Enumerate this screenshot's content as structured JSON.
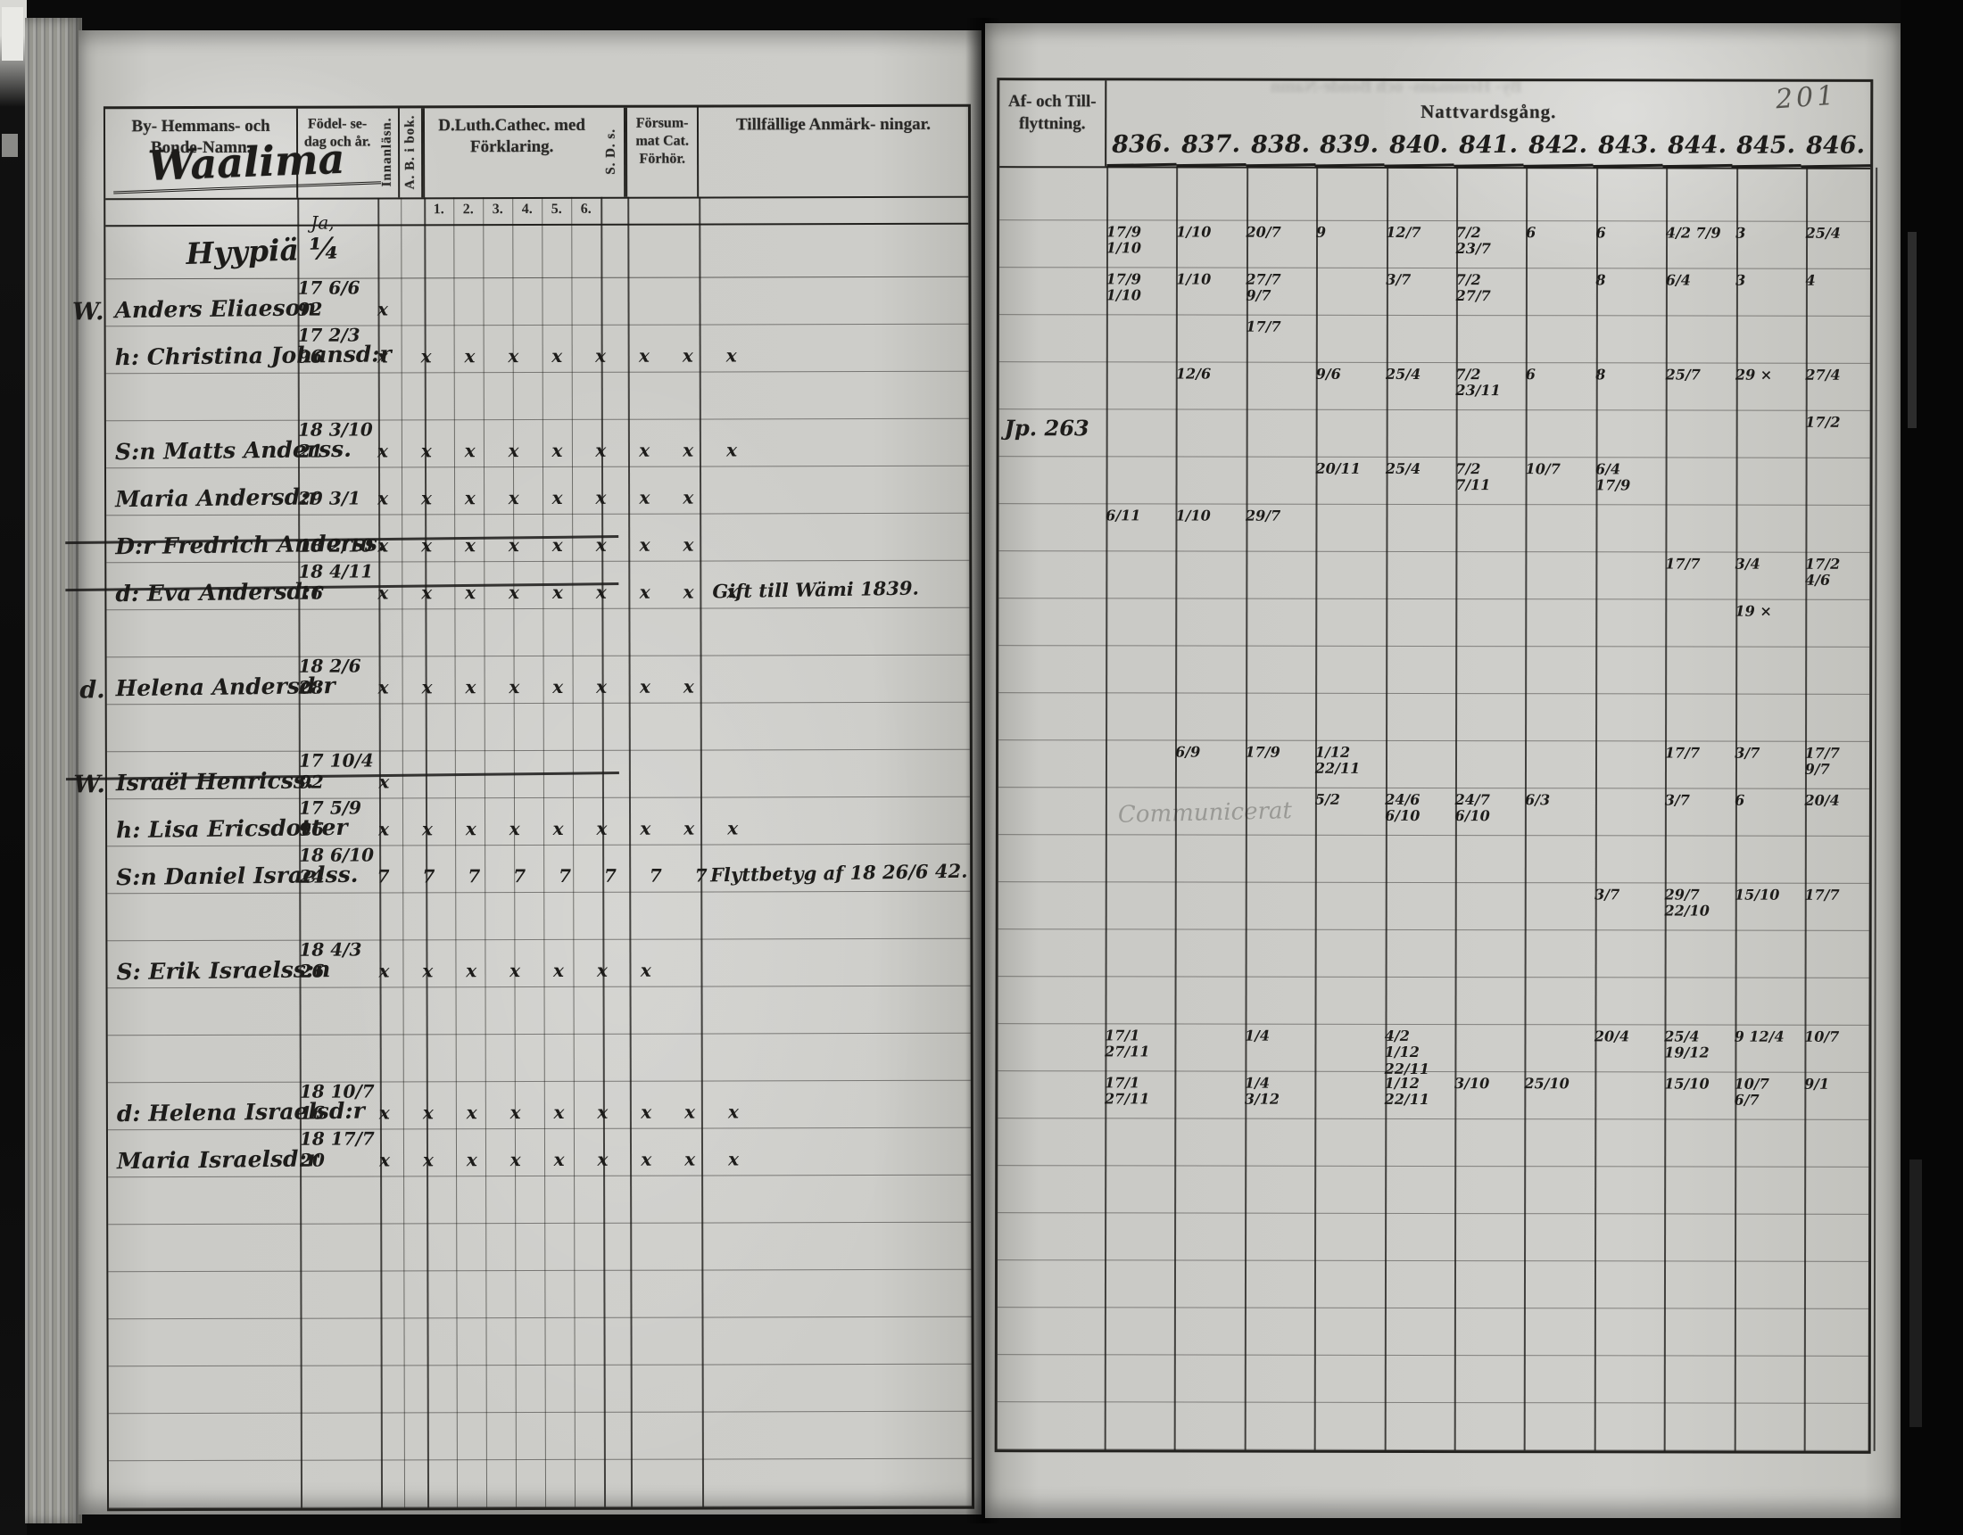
{
  "page_number": "201",
  "left_header": {
    "col_names": "By- Hemmans- och Bonde-Namn.",
    "col_birth": "Födel- se-dag och år.",
    "col_reading": "Innanläsn.",
    "col_abbook": "A. B. i bok.",
    "col_catechism": "D.Luth.Cathec. med Förklaring.",
    "catechism_subs": [
      "1.",
      "2.",
      "3.",
      "4.",
      "5.",
      "6."
    ],
    "col_sds": "S. D. s.",
    "col_missed": "Försum- mat Cat. Förhör.",
    "col_remarks": "Tillfällige Anmärk- ningar."
  },
  "right_header": {
    "col_moving": "Af- och Till- flyttning.",
    "communion_title": "Nattvardsgång."
  },
  "village": "Waalima",
  "farm": {
    "note": "Ja,",
    "name": "Hyypiä ¼"
  },
  "years": [
    "836",
    "837",
    "838",
    "839",
    "840",
    "841",
    "842",
    "843",
    "844",
    "845",
    "846"
  ],
  "rows": [
    {
      "margin": "W.",
      "name": "Anders Eliaeson",
      "birth": "17 6/6 92",
      "marks": "x",
      "comm": {
        "836": "17/9 1/10",
        "837": "1/10",
        "838": "20/7",
        "839": "9",
        "840": "12/7",
        "841": "7/2 23/7",
        "842": "6",
        "843": "6",
        "844": "4/2 7/9",
        "845": "3",
        "846": "25/4"
      }
    },
    {
      "name": "h: Christina Johansd:r",
      "birth": "17 2/3 96",
      "marks": "x x x x x x x x x",
      "comm": {
        "836": "17/9 1/10",
        "837": "1/10",
        "838": "27/7 9/7",
        "840": "3/7",
        "841": "7/2 27/7",
        "843": "8",
        "844": "6/4",
        "845": "3",
        "846": "4"
      }
    },
    {
      "comm": {
        "838": "17/7"
      }
    },
    {
      "name": "S:n Matts Anderss.",
      "birth": "18 3/10 21",
      "marks": "x x x x x x x x x",
      "comm": {
        "837": "12/6",
        "839": "9/6",
        "840": "25/4",
        "841": "7/2 23/11",
        "842": "6",
        "843": "8",
        "844": "25/7",
        "845": "29 ×",
        "846": "27/4"
      }
    },
    {
      "name": "Maria Andersd:r",
      "birth": "29 3/1",
      "marks": "x x x x x x x x",
      "moving": "Jp. 263",
      "comm": {
        "846": "17/2"
      }
    },
    {
      "name": "D:r Fredrich Anderss.",
      "birth": "18 2/10",
      "marks": "x x x x x x x x",
      "struck": true,
      "comm": {
        "839": "20/11",
        "840": "25/4",
        "841": "7/2 7/11",
        "842": "10/7",
        "843": "6/4 17/9"
      }
    },
    {
      "name": "d: Eva Andersd:r",
      "birth": "18 4/11 16",
      "marks": "x x x x x x x x x",
      "struck": true,
      "remark": "Gift till Wämi 1839.",
      "comm": {
        "836": "6/11",
        "837": "1/10",
        "838": "29/7"
      }
    },
    {
      "comm": {
        "844": "17/7",
        "845": "3/4",
        "846": "17/2 4/6"
      }
    },
    {
      "margin": "d.",
      "name": "Helena Andersd:r",
      "birth": "18 2/6 28",
      "marks": "x x x x x x x x",
      "comm": {
        "845": "19 ×"
      }
    },
    {},
    {
      "margin": "W.",
      "name": "Israël Henricss.",
      "birth": "17 10/4 92",
      "marks": "x",
      "struck": true
    },
    {
      "name": "h: Lisa Ericsdotter",
      "birth": "17 5/9 96",
      "marks": "x x x x x x x x x",
      "comm": {
        "837": "6/9",
        "838": "17/9",
        "839": "1/12 22/11",
        "844": "17/7",
        "845": "3/7",
        "846": "17/7 9/7"
      }
    },
    {
      "name": "S:n Daniel Israelss.",
      "birth": "18 6/10 24",
      "marks": "7 7 7 7 7 7 7 7",
      "remark": "Flyttbetyg af 18 26/6 42.",
      "faint_note": "Communicerat",
      "comm": {
        "839": "5/2",
        "840": "24/6 6/10",
        "841": "24/7 6/10",
        "842": "6/3",
        "844": "3/7",
        "845": "6",
        "846": "20/4"
      }
    },
    {},
    {
      "name": "S: Erik Israelss:n",
      "birth": "18 4/3 26",
      "marks": "x x x x x x x",
      "comm": {
        "843": "3/7",
        "844": "29/7 22/10",
        "845": "15/10",
        "846": "17/7"
      }
    },
    {},
    {},
    {
      "name": "d: Helena Israelsd:r",
      "birth": "18 10/7 16",
      "marks": "x x x x x x x x x",
      "comm": {
        "836": "17/1 27/11",
        "838": "1/4",
        "840": "4/2 1/12 22/11",
        "843": "20/4",
        "844": "25/4 19/12",
        "845": "9 12/4",
        "846": "10/7"
      }
    },
    {
      "name": "Maria Israelsd:r",
      "birth": "18 17/7 20",
      "marks": "x x x x x x x x x",
      "comm": {
        "836": "17/1 27/11",
        "838": "1/4 3/12",
        "840": "1/12 22/11",
        "841": "3/10",
        "842": "25/10",
        "844": "15/10",
        "845": "10/7 6/7",
        "846": "9/1"
      }
    },
    {},
    {},
    {},
    {},
    {},
    {},
    {}
  ]
}
